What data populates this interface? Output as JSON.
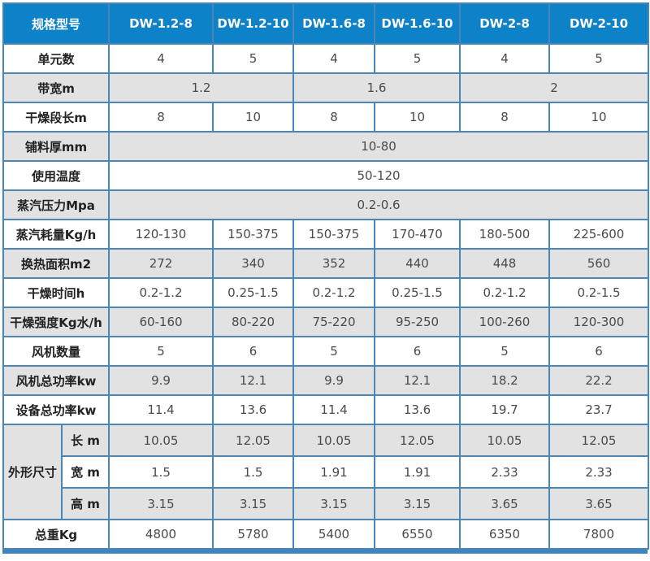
{
  "colors": {
    "header_bg": "#0d82c8",
    "header_text": "#ffffff",
    "border": "#4c86b5",
    "gray_row": "#e2e2e2",
    "white_row": "#ffffff",
    "bottom_bar": "#3f85bb"
  },
  "table": {
    "header": {
      "label": "规格型号",
      "models": [
        "DW-1.2-8",
        "DW-1.2-10",
        "DW-1.6-8",
        "DW-1.6-10",
        "DW-2-8",
        "DW-2-10"
      ]
    },
    "rows": [
      {
        "label": "单元数",
        "shade": "white",
        "spans": [
          1,
          1,
          1,
          1,
          1,
          1
        ],
        "values": [
          "4",
          "5",
          "4",
          "5",
          "4",
          "5"
        ]
      },
      {
        "label": "带宽m",
        "shade": "gray",
        "spans": [
          2,
          2,
          2
        ],
        "values": [
          "1.2",
          "1.6",
          "2"
        ]
      },
      {
        "label": "干燥段长m",
        "shade": "white",
        "spans": [
          1,
          1,
          1,
          1,
          1,
          1
        ],
        "values": [
          "8",
          "10",
          "8",
          "10",
          "8",
          "10"
        ]
      },
      {
        "label": "铺料厚mm",
        "shade": "gray",
        "spans": [
          6
        ],
        "values": [
          "10-80"
        ]
      },
      {
        "label": "使用温度",
        "shade": "white",
        "spans": [
          6
        ],
        "values": [
          "50-120"
        ]
      },
      {
        "label": "蒸汽压力Mpa",
        "shade": "gray",
        "spans": [
          6
        ],
        "values": [
          "0.2-0.6"
        ]
      },
      {
        "label": "蒸汽耗量Kg/h",
        "shade": "white",
        "spans": [
          1,
          1,
          1,
          1,
          1,
          1
        ],
        "values": [
          "120-130",
          "150-375",
          "150-375",
          "170-470",
          "180-500",
          "225-600"
        ]
      },
      {
        "label": "换热面积m2",
        "shade": "gray",
        "spans": [
          1,
          1,
          1,
          1,
          1,
          1
        ],
        "values": [
          "272",
          "340",
          "352",
          "440",
          "448",
          "560"
        ]
      },
      {
        "label": "干燥时间h",
        "shade": "white",
        "spans": [
          1,
          1,
          1,
          1,
          1,
          1
        ],
        "values": [
          "0.2-1.2",
          "0.25-1.5",
          "0.2-1.2",
          "0.25-1.5",
          "0.2-1.2",
          "0.2-1.5"
        ]
      },
      {
        "label": "干燥强度Kg水/h",
        "shade": "gray",
        "spans": [
          1,
          1,
          1,
          1,
          1,
          1
        ],
        "values": [
          "60-160",
          "80-220",
          "75-220",
          "95-250",
          "100-260",
          "120-300"
        ]
      },
      {
        "label": "风机数量",
        "shade": "white",
        "spans": [
          1,
          1,
          1,
          1,
          1,
          1
        ],
        "values": [
          "5",
          "6",
          "5",
          "6",
          "5",
          "6"
        ]
      },
      {
        "label": "风机总功率kw",
        "shade": "gray",
        "spans": [
          1,
          1,
          1,
          1,
          1,
          1
        ],
        "values": [
          "9.9",
          "12.1",
          "9.9",
          "12.1",
          "18.2",
          "22.2"
        ]
      },
      {
        "label": "设备总功率kw",
        "shade": "white",
        "spans": [
          1,
          1,
          1,
          1,
          1,
          1
        ],
        "values": [
          "11.4",
          "13.6",
          "11.4",
          "13.6",
          "19.7",
          "23.7"
        ]
      },
      {
        "group_label": "外形尺寸",
        "sub": [
          {
            "label": "长 m",
            "shade": "gray",
            "values": [
              "10.05",
              "12.05",
              "10.05",
              "12.05",
              "10.05",
              "12.05"
            ]
          },
          {
            "label": "宽 m",
            "shade": "white",
            "values": [
              "1.5",
              "1.5",
              "1.91",
              "1.91",
              "2.33",
              "2.33"
            ]
          },
          {
            "label": "高 m",
            "shade": "gray",
            "values": [
              "3.15",
              "3.15",
              "3.15",
              "3.15",
              "3.65",
              "3.65"
            ]
          }
        ]
      },
      {
        "label": "总重Kg",
        "shade": "white",
        "spans": [
          1,
          1,
          1,
          1,
          1,
          1
        ],
        "values": [
          "4800",
          "5780",
          "5400",
          "6550",
          "6350",
          "7800"
        ]
      }
    ]
  }
}
